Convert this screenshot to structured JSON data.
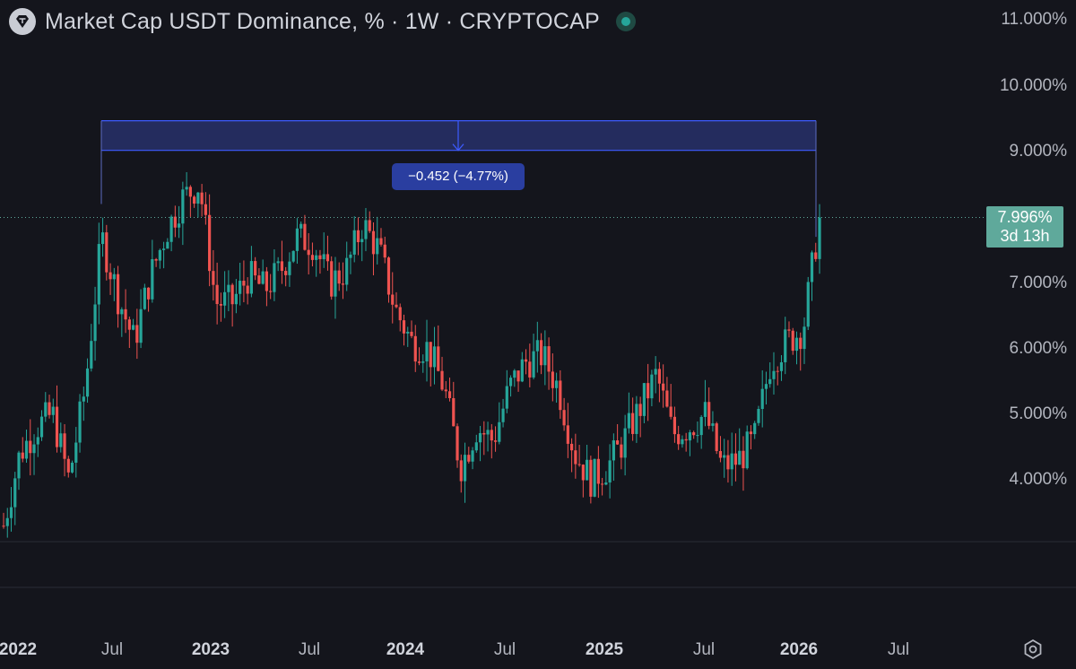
{
  "header": {
    "title": "Market Cap USDT Dominance, % · 1W · CRYPTOCAP",
    "logo_icon": "tether-diamond-icon",
    "status_icon": "market-status-dot-icon"
  },
  "current_price": {
    "value": "7.996%",
    "countdown": "3d 13h",
    "color": "#5fa99b"
  },
  "measure": {
    "label": "−0.452 (−4.77%)",
    "color": "#2a3ea0"
  },
  "settings_icon": "gear-icon",
  "colors": {
    "background": "#14151c",
    "up": "#26a69a",
    "down": "#ef5350",
    "measure_line": "#3d5afe"
  },
  "chart_data": {
    "type": "candlestick",
    "timeframe": "1W",
    "y_unit": "%",
    "y_ticks": [
      "4.000%",
      "5.000%",
      "6.000%",
      "7.000%",
      "8.000%",
      "9.000%",
      "10.000%",
      "11.000%"
    ],
    "x_ticks": [
      "2022",
      "Jul",
      "2023",
      "Jul",
      "2024",
      "Jul",
      "2025",
      "Jul",
      "2026",
      "Jul"
    ],
    "last_value": 7.996,
    "measure_range": {
      "from": 9.47,
      "to": 9.018,
      "change": -0.452,
      "change_pct": -4.77
    },
    "series": [
      {
        "name": "USDT.D",
        "type": "close",
        "points": [
          [
            "2022-01",
            3.3
          ],
          [
            "2022-02",
            4.4
          ],
          [
            "2022-03",
            4.8
          ],
          [
            "2022-04",
            5.0
          ],
          [
            "2022-05",
            4.0
          ],
          [
            "2022-05b",
            5.4
          ],
          [
            "2022-06",
            7.7
          ],
          [
            "2022-07",
            6.8
          ],
          [
            "2022-08",
            6.1
          ],
          [
            "2022-09",
            7.1
          ],
          [
            "2022-10",
            7.8
          ],
          [
            "2022-11",
            8.3
          ],
          [
            "2022-12",
            8.5
          ],
          [
            "2023-01",
            6.7
          ],
          [
            "2023-02",
            6.7
          ],
          [
            "2023-03",
            7.1
          ],
          [
            "2023-04",
            6.9
          ],
          [
            "2023-05",
            7.2
          ],
          [
            "2023-06",
            7.7
          ],
          [
            "2023-07",
            7.6
          ],
          [
            "2023-08",
            7.0
          ],
          [
            "2023-09",
            7.2
          ],
          [
            "2023-10",
            7.9
          ],
          [
            "2023-11",
            7.5
          ],
          [
            "2023-12",
            6.6
          ],
          [
            "2024-01",
            6.1
          ],
          [
            "2024-02",
            6.0
          ],
          [
            "2024-03",
            5.4
          ],
          [
            "2024-04",
            4.2
          ],
          [
            "2024-05",
            4.8
          ],
          [
            "2024-06",
            4.6
          ],
          [
            "2024-07",
            5.4
          ],
          [
            "2024-08",
            5.8
          ],
          [
            "2024-09",
            5.9
          ],
          [
            "2024-10",
            5.4
          ],
          [
            "2024-11",
            4.4
          ],
          [
            "2024-12",
            4.0
          ],
          [
            "2025-01",
            4.2
          ],
          [
            "2025-02",
            4.6
          ],
          [
            "2025-03",
            5.1
          ],
          [
            "2025-04",
            5.6
          ],
          [
            "2025-05",
            4.7
          ],
          [
            "2025-06",
            4.8
          ],
          [
            "2025-07",
            5.0
          ],
          [
            "2025-08",
            4.2
          ],
          [
            "2025-09",
            4.3
          ],
          [
            "2025-10",
            4.6
          ],
          [
            "2025-11",
            5.8
          ],
          [
            "2025-12",
            6.1
          ],
          [
            "2026-01",
            6.3
          ],
          [
            "2026-02",
            7.996
          ]
        ]
      }
    ]
  }
}
